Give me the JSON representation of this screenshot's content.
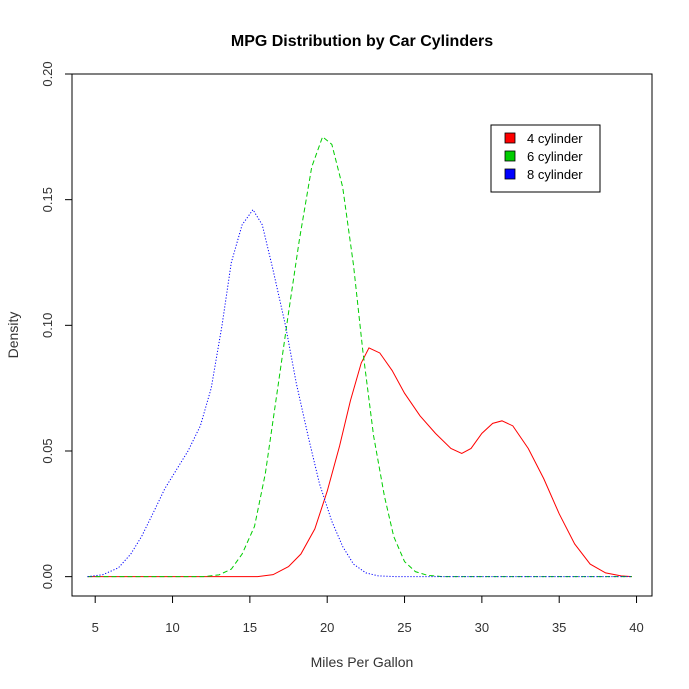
{
  "chart_data": {
    "type": "line",
    "title": "MPG Distribution by Car Cylinders",
    "xlabel": "Miles Per Gallon",
    "ylabel": "Density",
    "xlim": [
      3.5,
      41
    ],
    "ylim": [
      -0.0077,
      0.2
    ],
    "x_ticks": [
      5,
      10,
      15,
      20,
      25,
      30,
      35,
      40
    ],
    "y_ticks": [
      0.0,
      0.05,
      0.1,
      0.15,
      0.2
    ],
    "y_tick_labels": [
      "0.00",
      "0.05",
      "0.10",
      "0.15",
      "0.20"
    ],
    "grid": false,
    "legend_position": "top-right",
    "series": [
      {
        "name": "4 cylinder",
        "color": "#ff0000",
        "dash": "solid",
        "x": [
          4.5,
          14,
          15.5,
          16.5,
          17.5,
          18.3,
          19.2,
          20,
          20.8,
          21.5,
          22.2,
          22.7,
          23.4,
          24.2,
          25,
          26,
          27,
          28,
          28.7,
          29.3,
          30,
          30.7,
          31.3,
          32,
          33,
          34,
          35,
          36,
          37,
          38,
          39,
          39.7
        ],
        "values": [
          0,
          0,
          0,
          0.0008,
          0.004,
          0.009,
          0.019,
          0.034,
          0.052,
          0.07,
          0.085,
          0.091,
          0.089,
          0.082,
          0.073,
          0.064,
          0.057,
          0.051,
          0.049,
          0.051,
          0.057,
          0.061,
          0.062,
          0.06,
          0.051,
          0.039,
          0.025,
          0.013,
          0.005,
          0.0015,
          0.0003,
          0
        ]
      },
      {
        "name": "6 cylinder",
        "color": "#00cd00",
        "dash": "dashed",
        "x": [
          4.5,
          12,
          13,
          13.8,
          14.5,
          15.3,
          16,
          16.8,
          17.5,
          18.2,
          19,
          19.7,
          20.3,
          21,
          21.7,
          22.3,
          23,
          23.7,
          24.3,
          25,
          25.7,
          26.5,
          27.5,
          39.7
        ],
        "values": [
          0,
          0,
          0.0007,
          0.003,
          0.009,
          0.02,
          0.041,
          0.075,
          0.105,
          0.134,
          0.163,
          0.175,
          0.172,
          0.155,
          0.124,
          0.09,
          0.056,
          0.032,
          0.016,
          0.006,
          0.002,
          0.0005,
          0,
          0
        ]
      },
      {
        "name": "8 cylinder",
        "color": "#0000ff",
        "dash": "dotted",
        "x": [
          4.5,
          5.5,
          6.5,
          7.3,
          8,
          8.8,
          9.5,
          10.3,
          11,
          11.8,
          12.5,
          13.2,
          13.8,
          14.5,
          15.2,
          15.8,
          16.5,
          17.3,
          18,
          18.8,
          19.5,
          20.3,
          21,
          21.7,
          22.5,
          23.3,
          24.5,
          26,
          39.7
        ],
        "values": [
          0,
          0.0008,
          0.0035,
          0.009,
          0.016,
          0.026,
          0.035,
          0.043,
          0.05,
          0.06,
          0.075,
          0.1,
          0.125,
          0.14,
          0.146,
          0.14,
          0.122,
          0.1,
          0.077,
          0.055,
          0.037,
          0.022,
          0.012,
          0.005,
          0.0015,
          0.0003,
          0,
          0,
          0
        ]
      }
    ]
  }
}
